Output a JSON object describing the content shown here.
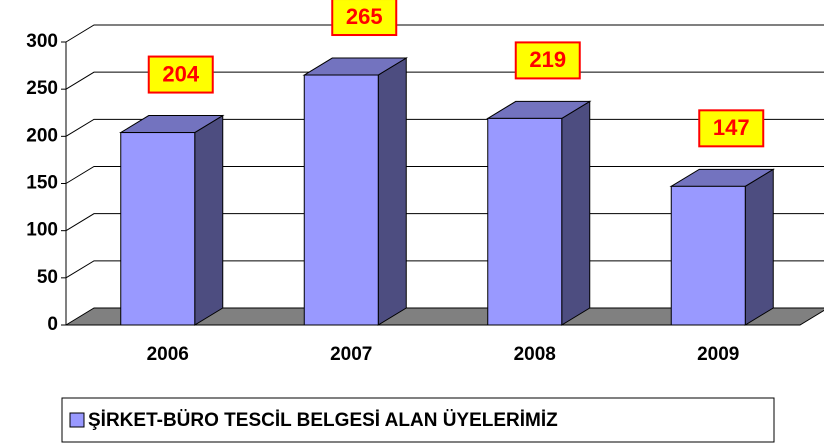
{
  "chart_data": {
    "type": "bar",
    "categories": [
      "2006",
      "2007",
      "2008",
      "2009"
    ],
    "series": [
      {
        "name": "ŞİRKET-BÜRO TESCİL BELGESİ ALAN ÜYELERİMİZ",
        "color": "#9999ff",
        "values": [
          204,
          265,
          219,
          147
        ]
      }
    ],
    "ylim": [
      0,
      300
    ],
    "yticks": [
      0,
      50,
      100,
      150,
      200,
      250,
      300
    ],
    "grid": true,
    "legend": "bottom"
  }
}
